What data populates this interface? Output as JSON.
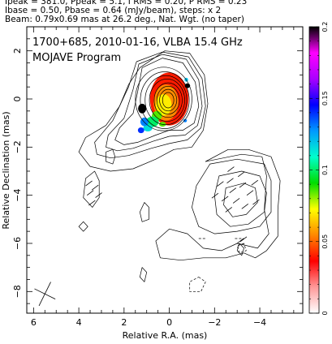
{
  "header": {
    "line1": "Ipeak = 381.0, Ppeak = 5.1, I RMS = 0.20, P RMS = 0.23",
    "line2": "Ibase = 0.50, Pbase = 0.64 (mJy/beam), steps: x 2",
    "line3": "Beam: 0.79x0.69 mas at 26.2 deg., Nat. Wgt. (no taper)"
  },
  "chart_data": {
    "type": "heatmap",
    "title": "1700+685, 2010-01-16, VLBA 15.4 GHz",
    "subtitle": "MOJAVE Program",
    "xlabel": "Relative R.A. (mas)",
    "ylabel": "Relative Declination (mas)",
    "xlim": [
      6.3,
      -5.9
    ],
    "ylim": [
      -8.9,
      3.0
    ],
    "x_ticks": [
      6,
      4,
      2,
      0,
      -2,
      -4
    ],
    "x_tick_labels": [
      "6",
      "4",
      "2",
      "0",
      "−2",
      "−4"
    ],
    "y_ticks": [
      2,
      0,
      -2,
      -4,
      -6,
      -8
    ],
    "y_tick_labels": [
      "2",
      "0",
      "−2",
      "−4",
      "−6",
      "−8"
    ],
    "colorbar": {
      "range": [
        0,
        0.2
      ],
      "ticks": [
        0,
        0.05,
        0.1,
        0.15,
        0.2
      ],
      "tick_labels": [
        "0",
        "0.05",
        "0.1",
        "0.15",
        "0.2"
      ],
      "colors": [
        "#ffffff",
        "#ff9999",
        "#ff0000",
        "#ff8800",
        "#ffff00",
        "#00dd00",
        "#00ffcc",
        "#0099ff",
        "#0000ff",
        "#aa00ff",
        "#ff00ff",
        "#000000"
      ]
    },
    "beam": {
      "major_mas": 0.79,
      "minor_mas": 0.69,
      "pa_deg": 26.2,
      "position": "bottom-left"
    },
    "core_contours_mas": [
      {
        "cx": 0.05,
        "cy": -0.05,
        "rx": 0.25,
        "ry": 0.32
      },
      {
        "cx": 0.05,
        "cy": -0.05,
        "rx": 0.38,
        "ry": 0.45
      },
      {
        "cx": 0.05,
        "cy": -0.05,
        "rx": 0.5,
        "ry": 0.58
      },
      {
        "cx": 0.05,
        "cy": -0.05,
        "rx": 0.62,
        "ry": 0.72
      },
      {
        "cx": 0.1,
        "cy": -0.05,
        "rx": 0.78,
        "ry": 0.88
      },
      {
        "cx": 0.15,
        "cy": -0.05,
        "rx": 0.92,
        "ry": 1.02
      },
      {
        "cx": 0.2,
        "cy": -0.05,
        "rx": 1.08,
        "ry": 1.18
      },
      {
        "cx": 0.25,
        "cy": 0.0,
        "rx": 1.25,
        "ry": 1.32
      }
    ],
    "outer_contours_mas": [
      [
        [
          1.2,
          1.3
        ],
        [
          0.3,
          1.7
        ],
        [
          -0.6,
          1.5
        ],
        [
          -1.15,
          0.7
        ],
        [
          -1.3,
          -0.3
        ],
        [
          -1.1,
          -1.0
        ],
        [
          -0.6,
          -1.3
        ],
        [
          0.0,
          -1.3
        ],
        [
          0.6,
          -1.5
        ],
        [
          1.4,
          -1.8
        ],
        [
          2.0,
          -1.9
        ],
        [
          2.4,
          -1.7
        ],
        [
          2.2,
          -1.2
        ],
        [
          1.6,
          -0.6
        ],
        [
          1.4,
          0.3
        ],
        [
          1.2,
          1.3
        ]
      ],
      [
        [
          1.35,
          1.45
        ],
        [
          0.3,
          1.85
        ],
        [
          -0.75,
          1.65
        ],
        [
          -1.3,
          0.8
        ],
        [
          -1.45,
          -0.3
        ],
        [
          -1.25,
          -1.1
        ],
        [
          -0.7,
          -1.5
        ],
        [
          0.0,
          -1.55
        ],
        [
          0.7,
          -1.75
        ],
        [
          1.6,
          -2.05
        ],
        [
          2.3,
          -2.15
        ],
        [
          2.8,
          -2.0
        ],
        [
          2.7,
          -1.5
        ],
        [
          2.0,
          -0.8
        ],
        [
          1.6,
          0.4
        ],
        [
          1.35,
          1.45
        ]
      ],
      [
        [
          1.45,
          1.55
        ],
        [
          0.3,
          1.95
        ],
        [
          -0.85,
          1.75
        ],
        [
          -1.45,
          0.85
        ],
        [
          -1.6,
          -0.3
        ],
        [
          -1.4,
          -1.2
        ],
        [
          -0.8,
          -1.7
        ],
        [
          0.0,
          -1.85
        ],
        [
          0.8,
          -2.05
        ],
        [
          1.8,
          -2.35
        ],
        [
          2.6,
          -2.45
        ],
        [
          3.2,
          -2.3
        ],
        [
          3.3,
          -1.8
        ],
        [
          2.5,
          -0.9
        ],
        [
          1.8,
          0.5
        ],
        [
          1.45,
          1.55
        ]
      ],
      [
        [
          1.3,
          1.3
        ],
        [
          0.2,
          2.0
        ],
        [
          -0.9,
          1.9
        ],
        [
          -1.55,
          1.0
        ],
        [
          -1.7,
          -0.2
        ],
        [
          -1.5,
          -1.3
        ],
        [
          -1.0,
          -2.0
        ],
        [
          -0.2,
          -2.1
        ],
        [
          0.6,
          -2.5
        ],
        [
          1.6,
          -2.9
        ],
        [
          2.6,
          -3.0
        ],
        [
          3.5,
          -2.8
        ],
        [
          4.0,
          -2.2
        ],
        [
          3.7,
          -1.6
        ],
        [
          2.8,
          -1.1
        ],
        [
          2.2,
          -0.3
        ],
        [
          1.8,
          0.6
        ],
        [
          1.3,
          1.3
        ]
      ],
      [
        [
          -2.5,
          -3.7
        ],
        [
          -3.3,
          -3.5
        ],
        [
          -3.8,
          -3.7
        ],
        [
          -3.9,
          -4.3
        ],
        [
          -3.4,
          -4.8
        ],
        [
          -2.8,
          -4.9
        ],
        [
          -2.4,
          -4.4
        ],
        [
          -2.5,
          -3.7
        ]
      ],
      [
        [
          -2.2,
          -3.2
        ],
        [
          -3.2,
          -3.0
        ],
        [
          -4.0,
          -3.2
        ],
        [
          -4.3,
          -3.9
        ],
        [
          -4.2,
          -4.7
        ],
        [
          -3.5,
          -5.2
        ],
        [
          -2.7,
          -5.3
        ],
        [
          -2.1,
          -4.8
        ],
        [
          -2.0,
          -4.0
        ],
        [
          -2.2,
          -3.2
        ]
      ],
      [
        [
          -1.8,
          -2.7
        ],
        [
          -3.0,
          -2.5
        ],
        [
          -4.2,
          -2.7
        ],
        [
          -4.5,
          -3.4
        ],
        [
          -4.5,
          -4.7
        ],
        [
          -4.0,
          -5.3
        ],
        [
          -3.0,
          -5.5
        ],
        [
          -2.0,
          -5.6
        ],
        [
          -1.3,
          -5.3
        ],
        [
          -1.0,
          -4.5
        ],
        [
          -1.2,
          -3.6
        ],
        [
          -1.8,
          -2.7
        ]
      ],
      [
        [
          -1.6,
          -2.6
        ],
        [
          -3.2,
          -2.3
        ],
        [
          -4.1,
          -2.4
        ],
        [
          -4.3,
          -3.2
        ],
        [
          -4.2,
          -4.6
        ],
        [
          -4.4,
          -5.6
        ],
        [
          -3.9,
          -6.2
        ],
        [
          -3.0,
          -6.0
        ],
        [
          -2.3,
          -6.3
        ],
        [
          -1.5,
          -6.2
        ],
        [
          -0.8,
          -5.6
        ],
        [
          0.0,
          -5.4
        ],
        [
          0.6,
          -5.9
        ],
        [
          0.4,
          -6.6
        ],
        [
          -0.5,
          -6.7
        ],
        [
          -1.5,
          -6.6
        ],
        [
          -2.5,
          -6.6
        ],
        [
          -3.3,
          -6.4
        ],
        [
          -3.8,
          -6.6
        ],
        [
          -4.3,
          -6.3
        ],
        [
          -4.8,
          -5.7
        ],
        [
          -4.8,
          -4.6
        ],
        [
          -4.9,
          -3.4
        ],
        [
          -4.5,
          -2.4
        ],
        [
          -3.5,
          -2.1
        ],
        [
          -2.6,
          -2.1
        ],
        [
          -1.6,
          -2.6
        ]
      ],
      [
        [
          3.3,
          -3.0
        ],
        [
          3.7,
          -3.3
        ],
        [
          3.8,
          -4.1
        ],
        [
          3.4,
          -4.5
        ],
        [
          3.1,
          -4.1
        ],
        [
          3.1,
          -3.4
        ],
        [
          3.3,
          -3.0
        ]
      ],
      [
        [
          2.5,
          -2.1
        ],
        [
          2.8,
          -2.2
        ],
        [
          2.8,
          -2.6
        ],
        [
          2.5,
          -2.7
        ],
        [
          2.4,
          -2.4
        ],
        [
          2.5,
          -2.1
        ]
      ],
      [
        [
          3.8,
          -5.1
        ],
        [
          3.6,
          -5.3
        ],
        [
          3.8,
          -5.5
        ],
        [
          4.0,
          -5.3
        ],
        [
          3.8,
          -5.1
        ]
      ],
      [
        [
          1.1,
          -4.3
        ],
        [
          0.9,
          -4.5
        ],
        [
          0.9,
          -5.0
        ],
        [
          1.2,
          -5.1
        ],
        [
          1.3,
          -4.7
        ],
        [
          1.1,
          -4.3
        ]
      ],
      [
        [
          1.2,
          -7.0
        ],
        [
          1.0,
          -7.2
        ],
        [
          1.1,
          -7.6
        ],
        [
          1.3,
          -7.4
        ],
        [
          1.2,
          -7.0
        ]
      ],
      [
        [
          -3.1,
          -6.0
        ],
        [
          -3.3,
          -6.2
        ],
        [
          -3.2,
          -6.5
        ],
        [
          -3.0,
          -6.3
        ],
        [
          -3.1,
          -6.0
        ]
      ]
    ],
    "negative_contours_mas": [
      [
        [
          -1.3,
          -7.4
        ],
        [
          -1.6,
          -7.6
        ],
        [
          -1.4,
          -8.0
        ],
        [
          -0.9,
          -8.0
        ],
        [
          -0.9,
          -7.6
        ],
        [
          -1.3,
          -7.4
        ]
      ],
      [
        [
          -3.3,
          -6.0
        ],
        [
          -3.0,
          -6.1
        ],
        [
          -3.1,
          -6.4
        ],
        [
          -3.4,
          -6.3
        ],
        [
          -3.3,
          -6.0
        ]
      ],
      [
        [
          -2.9,
          -5.8
        ],
        [
          -3.3,
          -5.8
        ]
      ],
      [
        [
          -1.3,
          -5.8
        ],
        [
          -1.6,
          -5.8
        ]
      ]
    ],
    "polarization_fill_mas": [
      {
        "x": 0.0,
        "y": 0.0,
        "rx": 0.85,
        "ry": 1.1,
        "frac": 0.04
      },
      {
        "x": 0.15,
        "y": -0.15,
        "rx": 0.55,
        "ry": 0.75,
        "frac": 0.055
      },
      {
        "x": 0.25,
        "y": -0.25,
        "rx": 0.35,
        "ry": 0.45,
        "frac": 0.07
      },
      {
        "x": 0.55,
        "y": -0.7,
        "rx": 0.22,
        "ry": 0.2,
        "frac": 0.085
      },
      {
        "x": 0.75,
        "y": -0.95,
        "rx": 0.28,
        "ry": 0.22,
        "frac": 0.1
      },
      {
        "x": 0.95,
        "y": -1.2,
        "rx": 0.2,
        "ry": 0.15,
        "frac": 0.115
      },
      {
        "x": 1.1,
        "y": -0.95,
        "rx": 0.18,
        "ry": 0.18,
        "frac": 0.13
      },
      {
        "x": 1.25,
        "y": -1.3,
        "rx": 0.14,
        "ry": 0.12,
        "frac": 0.14
      },
      {
        "x": 1.2,
        "y": -0.4,
        "rx": 0.18,
        "ry": 0.2,
        "frac": 0.2
      },
      {
        "x": -0.8,
        "y": 0.55,
        "rx": 0.12,
        "ry": 0.1,
        "frac": 0.2
      },
      {
        "x": -0.75,
        "y": 0.8,
        "rx": 0.08,
        "ry": 0.08,
        "frac": 0.12
      },
      {
        "x": 0.3,
        "y": -1.05,
        "rx": 0.15,
        "ry": 0.1,
        "frac": 0.085
      },
      {
        "x": -0.7,
        "y": -0.9,
        "rx": 0.08,
        "ry": 0.07,
        "frac": 0.13
      }
    ],
    "evpa_regions_mas": [
      {
        "cx": -3.0,
        "cy": -3.8,
        "rx": 1.2,
        "ry": 1.2,
        "count": 14
      },
      {
        "cx": 3.4,
        "cy": -3.9,
        "rx": 0.35,
        "ry": 0.7,
        "count": 5
      },
      {
        "cx": -3.2,
        "cy": -5.9,
        "rx": 0.15,
        "ry": 0.15,
        "count": 2
      }
    ]
  }
}
